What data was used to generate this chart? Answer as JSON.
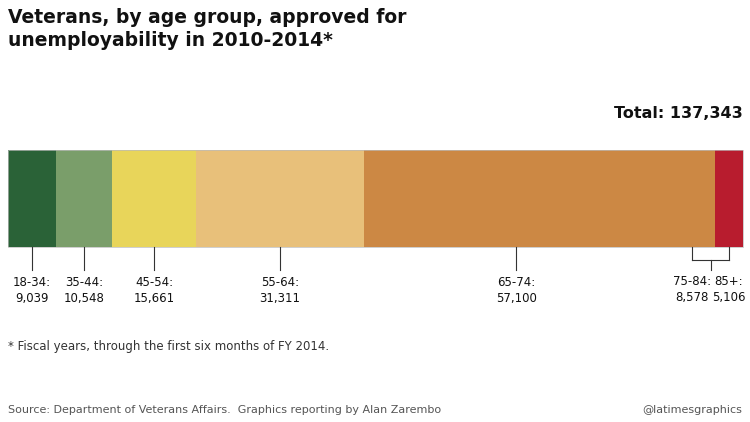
{
  "title": "Veterans, by age group, approved for\nunemployability in 2010-2014*",
  "total_label": "Total: 137,343",
  "categories": [
    "18-34",
    "35-44",
    "45-54",
    "55-64",
    "65-74",
    "75-84",
    "85+"
  ],
  "values": [
    9039,
    10548,
    15661,
    31311,
    57100,
    8578,
    5106
  ],
  "labels_line1": [
    "18-34:",
    "35-44:",
    "45-54:",
    "55-64:",
    "65-74:",
    "75-84:",
    "85+:"
  ],
  "labels_line2": [
    "9,039",
    "10,548",
    "15,661",
    "31,311",
    "57,100",
    "8,578",
    "5,106"
  ],
  "colors": [
    "#2a6237",
    "#7a9e6a",
    "#e8d55a",
    "#e8c07a",
    "#cc8844",
    "#cc8844",
    "#b81c2e"
  ],
  "footnote": "* Fiscal years, through the first six months of FY 2014.",
  "source": "Source: Department of Veterans Affairs.  Graphics reporting by Alan Zarembo",
  "credit": "@latimesgraphics",
  "bg_color": "#ffffff",
  "tick_color": "#333333"
}
